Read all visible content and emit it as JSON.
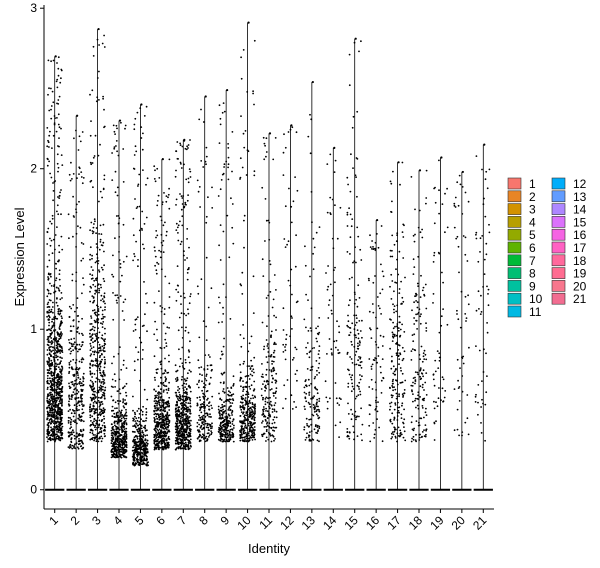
{
  "chart_data": {
    "type": "violin",
    "title": "",
    "xlabel": "Identity",
    "ylabel": "Expression Level",
    "ylim": [
      -0.12,
      3.02
    ],
    "yticks": [
      0,
      1,
      2,
      3
    ],
    "grid": false,
    "legend_position": "right",
    "categories": [
      "1",
      "2",
      "3",
      "4",
      "5",
      "6",
      "7",
      "8",
      "9",
      "10",
      "11",
      "12",
      "13",
      "14",
      "15",
      "16",
      "17",
      "18",
      "19",
      "20",
      "21"
    ],
    "colors": [
      "#F8766D",
      "#E88526",
      "#D39200",
      "#B79F00",
      "#93AA00",
      "#5EB300",
      "#00BA38",
      "#00BF74",
      "#00C19F",
      "#00BFC4",
      "#00B9E3",
      "#00ADFA",
      "#619CFF",
      "#AE87FF",
      "#DB72FB",
      "#F564E3",
      "#FF61C3",
      "#FF699C",
      "#FF6C91",
      "#F8768D",
      "#F26D91"
    ],
    "series": [
      {
        "name": "1",
        "max": 2.7,
        "nonzero_fraction": 0.95,
        "bulk_low": 0.3,
        "bulk_high": 1.1,
        "density": 1.0
      },
      {
        "name": "2",
        "max": 2.33,
        "nonzero_fraction": 0.55,
        "bulk_low": 0.25,
        "bulk_high": 1.0,
        "density": 0.35
      },
      {
        "name": "3",
        "max": 2.87,
        "nonzero_fraction": 0.8,
        "bulk_low": 0.3,
        "bulk_high": 1.4,
        "density": 0.55
      },
      {
        "name": "4",
        "max": 2.3,
        "nonzero_fraction": 0.6,
        "bulk_low": 0.2,
        "bulk_high": 0.5,
        "density": 0.5
      },
      {
        "name": "5",
        "max": 2.4,
        "nonzero_fraction": 0.55,
        "bulk_low": 0.15,
        "bulk_high": 0.4,
        "density": 0.45
      },
      {
        "name": "6",
        "max": 2.06,
        "nonzero_fraction": 0.6,
        "bulk_low": 0.25,
        "bulk_high": 0.6,
        "density": 0.55
      },
      {
        "name": "7",
        "max": 2.18,
        "nonzero_fraction": 0.65,
        "bulk_low": 0.25,
        "bulk_high": 0.6,
        "density": 0.6
      },
      {
        "name": "8",
        "max": 2.45,
        "nonzero_fraction": 0.25,
        "bulk_low": 0.3,
        "bulk_high": 0.7,
        "density": 0.2
      },
      {
        "name": "9",
        "max": 2.49,
        "nonzero_fraction": 0.35,
        "bulk_low": 0.3,
        "bulk_high": 0.6,
        "density": 0.3
      },
      {
        "name": "10",
        "max": 2.91,
        "nonzero_fraction": 0.4,
        "bulk_low": 0.3,
        "bulk_high": 0.7,
        "density": 0.35
      },
      {
        "name": "11",
        "max": 2.22,
        "nonzero_fraction": 0.25,
        "bulk_low": 0.3,
        "bulk_high": 1.0,
        "density": 0.2
      },
      {
        "name": "12",
        "max": 2.27,
        "nonzero_fraction": 0.05,
        "bulk_low": 0.5,
        "bulk_high": 2.0,
        "density": 0.04
      },
      {
        "name": "13",
        "max": 2.54,
        "nonzero_fraction": 0.2,
        "bulk_low": 0.3,
        "bulk_high": 0.9,
        "density": 0.15
      },
      {
        "name": "14",
        "max": 2.13,
        "nonzero_fraction": 0.05,
        "bulk_low": 0.3,
        "bulk_high": 2.0,
        "density": 0.04
      },
      {
        "name": "15",
        "max": 2.81,
        "nonzero_fraction": 0.25,
        "bulk_low": 0.3,
        "bulk_high": 1.5,
        "density": 0.15
      },
      {
        "name": "16",
        "max": 1.68,
        "nonzero_fraction": 0.1,
        "bulk_low": 0.3,
        "bulk_high": 1.5,
        "density": 0.07
      },
      {
        "name": "17",
        "max": 2.04,
        "nonzero_fraction": 0.25,
        "bulk_low": 0.3,
        "bulk_high": 1.2,
        "density": 0.2
      },
      {
        "name": "18",
        "max": 1.99,
        "nonzero_fraction": 0.2,
        "bulk_low": 0.3,
        "bulk_high": 1.2,
        "density": 0.15
      },
      {
        "name": "19",
        "max": 2.07,
        "nonzero_fraction": 0.05,
        "bulk_low": 0.3,
        "bulk_high": 2.0,
        "density": 0.04
      },
      {
        "name": "20",
        "max": 1.98,
        "nonzero_fraction": 0.05,
        "bulk_low": 0.3,
        "bulk_high": 2.0,
        "density": 0.04
      },
      {
        "name": "21",
        "max": 2.15,
        "nonzero_fraction": 0.05,
        "bulk_low": 0.3,
        "bulk_high": 2.0,
        "density": 0.04
      }
    ]
  }
}
